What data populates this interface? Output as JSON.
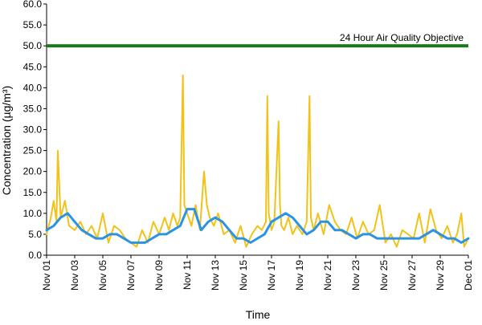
{
  "chart_data": {
    "type": "line",
    "ylabel": "Concentration (µg/m³)",
    "xlabel": "Time",
    "ylim": [
      0,
      60
    ],
    "y_ticks": [
      "0.0",
      "5.0",
      "10.0",
      "15.0",
      "20.0",
      "25.0",
      "30.0",
      "35.0",
      "40.0",
      "45.0",
      "50.0",
      "55.0",
      "60.0"
    ],
    "x_ticks": [
      "Nov 01",
      "Nov 03",
      "Nov 05",
      "Nov 07",
      "Nov 09",
      "Nov 11",
      "Nov 13",
      "Nov 15",
      "Nov 17",
      "Nov 19",
      "Nov 21",
      "Nov 23",
      "Nov 25",
      "Nov 27",
      "Nov 29",
      "Dec 01"
    ],
    "x_range_days": [
      1,
      31
    ],
    "grid": false,
    "objective": {
      "label": "24 Hour Air Quality Objective",
      "value": 50,
      "color": "#1a7a1a"
    },
    "series": [
      {
        "color": "#f2c218",
        "x": [
          1.0,
          1.3,
          1.5,
          1.7,
          1.8,
          2.0,
          2.3,
          2.6,
          3.0,
          3.4,
          3.8,
          4.2,
          4.6,
          5.0,
          5.4,
          5.8,
          6.2,
          6.6,
          7.0,
          7.4,
          7.8,
          8.2,
          8.6,
          9.0,
          9.4,
          9.7,
          10.0,
          10.3,
          10.5,
          10.7,
          10.8,
          11.0,
          11.3,
          11.6,
          11.9,
          12.2,
          12.4,
          12.6,
          12.9,
          13.2,
          13.6,
          14.0,
          14.4,
          14.8,
          15.2,
          15.6,
          16.0,
          16.3,
          16.6,
          16.7,
          16.8,
          17.0,
          17.2,
          17.5,
          17.6,
          17.7,
          17.9,
          18.2,
          18.5,
          18.8,
          19.2,
          19.5,
          19.7,
          19.8,
          20.0,
          20.3,
          20.7,
          21.1,
          21.5,
          21.9,
          22.3,
          22.7,
          23.1,
          23.5,
          23.9,
          24.3,
          24.7,
          25.1,
          25.5,
          25.9,
          26.3,
          26.7,
          27.1,
          27.5,
          27.9,
          28.3,
          28.7,
          29.1,
          29.5,
          29.9,
          30.2,
          30.5,
          30.7,
          31.0
        ],
        "values": [
          5,
          9,
          13,
          8,
          25,
          9,
          13,
          7,
          6,
          8,
          5,
          7,
          4,
          10,
          3,
          7,
          6,
          4,
          3,
          2,
          6,
          3,
          8,
          5,
          9,
          6,
          10,
          7,
          9,
          43,
          12,
          10,
          7,
          12,
          6,
          20,
          12,
          9,
          7,
          10,
          5,
          6,
          3,
          7,
          2,
          5,
          7,
          6,
          8,
          38,
          10,
          6,
          8,
          32,
          12,
          7,
          6,
          9,
          5,
          7,
          5,
          8,
          38,
          9,
          6,
          10,
          5,
          12,
          8,
          6,
          5,
          9,
          4,
          8,
          5,
          6,
          12,
          3,
          5,
          2,
          6,
          5,
          4,
          10,
          3,
          11,
          6,
          4,
          7,
          3,
          5,
          10,
          2,
          4
        ]
      },
      {
        "color": "#2a93e2",
        "x": [
          1.0,
          1.5,
          2.0,
          2.5,
          3.0,
          3.5,
          4.0,
          4.5,
          5.0,
          5.5,
          6.0,
          6.5,
          7.0,
          7.5,
          8.0,
          8.5,
          9.0,
          9.5,
          10.0,
          10.5,
          11.0,
          11.5,
          12.0,
          12.5,
          13.0,
          13.5,
          14.0,
          14.5,
          15.0,
          15.5,
          16.0,
          16.5,
          17.0,
          17.5,
          18.0,
          18.5,
          19.0,
          19.5,
          20.0,
          20.5,
          21.0,
          21.5,
          22.0,
          22.5,
          23.0,
          23.5,
          24.0,
          24.5,
          25.0,
          25.5,
          26.0,
          26.5,
          27.0,
          27.5,
          28.0,
          28.5,
          29.0,
          29.5,
          30.0,
          30.5,
          31.0
        ],
        "values": [
          6,
          7,
          9,
          10,
          8,
          6,
          5,
          4,
          4,
          5,
          5,
          4,
          3,
          3,
          3,
          4,
          5,
          5,
          6,
          7,
          11,
          11,
          6,
          8,
          9,
          8,
          6,
          4,
          4,
          3,
          4,
          5,
          8,
          9,
          10,
          9,
          7,
          5,
          6,
          8,
          8,
          6,
          6,
          5,
          4,
          5,
          5,
          4,
          4,
          4,
          4,
          4,
          4,
          4,
          5,
          6,
          5,
          4,
          4,
          3,
          4
        ]
      }
    ]
  }
}
